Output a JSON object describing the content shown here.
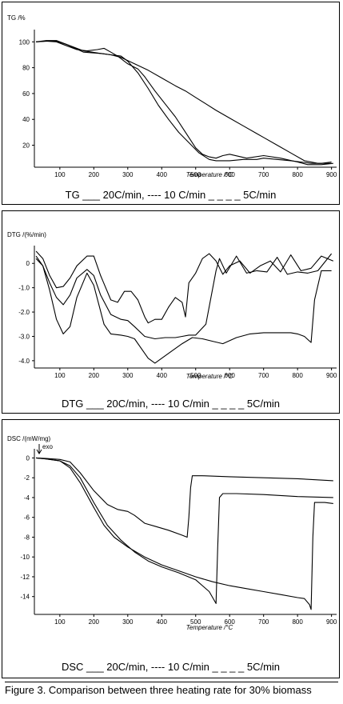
{
  "colors": {
    "line": "#000000",
    "background": "#ffffff"
  },
  "caption": "Figure 3.  Comparison between three heating rate for 30% biomass",
  "chart_data": [
    {
      "type": "line",
      "ylabel": "TG /%",
      "xlabel": "Temperature /°C",
      "legend_text": "TG  ___ 20C/min, ----  10 C/min  _ _ _ _ 5C/min",
      "xlim": [
        25,
        915
      ],
      "ylim": [
        3,
        107
      ],
      "x_ticks": [
        100,
        200,
        300,
        400,
        500,
        600,
        700,
        800,
        900
      ],
      "y_ticks": [
        20,
        40,
        60,
        80,
        100
      ],
      "grid": false,
      "series": [
        {
          "name": "20C/min",
          "x": [
            30,
            60,
            90,
            120,
            170,
            220,
            250,
            280,
            320,
            360,
            400,
            440,
            470,
            500,
            530,
            560,
            600,
            640,
            680,
            700,
            740,
            780,
            820,
            860,
            900
          ],
          "y": [
            100,
            100.5,
            100.5,
            98,
            93,
            91,
            90,
            88,
            83,
            78,
            72,
            66,
            62,
            57,
            52,
            47,
            41,
            35,
            29,
            26,
            20,
            14,
            8,
            6,
            6
          ]
        },
        {
          "name": "10C/min",
          "x": [
            30,
            60,
            90,
            120,
            170,
            220,
            250,
            280,
            300,
            330,
            360,
            390,
            420,
            450,
            480,
            510,
            540,
            560,
            600,
            640,
            680,
            700,
            740,
            780,
            810,
            840,
            870,
            900
          ],
          "y": [
            100,
            101,
            101,
            98,
            92,
            91,
            90,
            89,
            85,
            76,
            64,
            51,
            40,
            30,
            22,
            14,
            9,
            8,
            8,
            9,
            9,
            10,
            9,
            8,
            7,
            6,
            6,
            7
          ]
        },
        {
          "name": "5C/min",
          "x": [
            30,
            60,
            90,
            120,
            150,
            180,
            210,
            230,
            250,
            270,
            300,
            330,
            350,
            380,
            410,
            440,
            460,
            480,
            500,
            520,
            540,
            560,
            580,
            600,
            650,
            700,
            750,
            800,
            830,
            870,
            905
          ],
          "y": [
            100,
            100.5,
            100,
            97,
            94,
            93,
            94,
            95,
            92,
            89,
            83,
            79,
            73,
            62,
            52,
            42,
            34,
            26,
            18,
            13,
            11,
            10,
            12,
            13,
            10,
            12,
            10,
            7,
            5,
            5,
            6
          ]
        }
      ]
    },
    {
      "type": "line",
      "ylabel": "DTG /(%/min)",
      "xlabel": "Temperature /°C",
      "legend_text": "DTG  ___ 20C/min, ----  10 C/min  _ _ _ _ 5C/min",
      "xlim": [
        25,
        915
      ],
      "ylim": [
        -4.3,
        0.6
      ],
      "x_ticks": [
        100,
        200,
        300,
        400,
        500,
        600,
        700,
        800,
        900
      ],
      "y_ticks": [
        0,
        -1.0,
        -2.0,
        -3.0,
        -4.0
      ],
      "grid": false,
      "series": [
        {
          "name": "20C/min",
          "x": [
            30,
            50,
            70,
            90,
            110,
            130,
            150,
            180,
            200,
            230,
            250,
            280,
            300,
            320,
            340,
            360,
            380,
            400,
            430,
            460,
            490,
            520,
            550,
            580,
            620,
            660,
            700,
            740,
            780,
            800,
            820,
            840,
            850,
            870,
            900
          ],
          "y": [
            0.3,
            -0.1,
            -1.1,
            -2.3,
            -2.9,
            -2.6,
            -1.4,
            -0.4,
            -0.9,
            -2.5,
            -2.9,
            -2.95,
            -3.0,
            -3.1,
            -3.5,
            -3.9,
            -4.1,
            -3.9,
            -3.6,
            -3.3,
            -3.05,
            -3.1,
            -3.2,
            -3.3,
            -3.05,
            -2.9,
            -2.85,
            -2.85,
            -2.85,
            -2.9,
            -3.0,
            -3.25,
            -1.5,
            -0.3,
            -0.3
          ]
        },
        {
          "name": "10C/min",
          "x": [
            30,
            50,
            70,
            90,
            110,
            130,
            150,
            180,
            200,
            220,
            250,
            280,
            300,
            320,
            350,
            380,
            410,
            440,
            460,
            480,
            500,
            530,
            560,
            570,
            590,
            620,
            650,
            680,
            710,
            740,
            770,
            800,
            830,
            860,
            900
          ],
          "y": [
            0.2,
            -0.1,
            -0.8,
            -1.4,
            -1.7,
            -1.3,
            -0.6,
            -0.25,
            -0.5,
            -1.3,
            -2.1,
            -2.3,
            -2.35,
            -2.6,
            -3.0,
            -3.1,
            -3.05,
            -3.05,
            -3.0,
            -2.95,
            -2.95,
            -2.5,
            -0.3,
            0.2,
            -0.4,
            0.3,
            -0.4,
            -0.3,
            -0.35,
            0.25,
            -0.45,
            -0.35,
            -0.4,
            -0.3,
            0.4
          ]
        },
        {
          "name": "5C/min",
          "x": [
            30,
            50,
            70,
            90,
            110,
            130,
            150,
            180,
            200,
            220,
            250,
            270,
            290,
            310,
            330,
            350,
            360,
            380,
            400,
            420,
            440,
            460,
            470,
            480,
            500,
            520,
            540,
            560,
            580,
            600,
            630,
            660,
            690,
            720,
            750,
            780,
            810,
            840,
            870,
            905
          ],
          "y": [
            0.5,
            0.2,
            -0.5,
            -1.0,
            -0.95,
            -0.6,
            -0.1,
            0.3,
            0.3,
            -0.5,
            -1.5,
            -1.6,
            -1.15,
            -1.15,
            -1.5,
            -2.2,
            -2.45,
            -2.3,
            -2.3,
            -1.8,
            -1.4,
            -1.6,
            -2.2,
            -0.8,
            -0.4,
            0.2,
            0.4,
            0.1,
            -0.45,
            -0.1,
            0.1,
            -0.4,
            -0.1,
            0.1,
            -0.35,
            0.35,
            -0.3,
            -0.2,
            0.3,
            0.1
          ]
        }
      ]
    },
    {
      "type": "line",
      "ylabel": "DSC /(mW/mg)",
      "annotation": "exo",
      "xlabel": "Temperature /°C",
      "legend_text": "DSC  ___ 20C/min, ----  10 C/min  _ _ _ _ 5C/min",
      "xlim": [
        25,
        915
      ],
      "ylim": [
        -15.8,
        0.6
      ],
      "x_ticks": [
        100,
        200,
        300,
        400,
        500,
        600,
        700,
        800,
        900
      ],
      "y_ticks": [
        0,
        -2,
        -4,
        -6,
        -8,
        -10,
        -12,
        -14
      ],
      "grid": false,
      "series": [
        {
          "name": "20C/min",
          "x": [
            30,
            60,
            100,
            130,
            160,
            200,
            230,
            260,
            300,
            350,
            400,
            450,
            500,
            550,
            600,
            650,
            700,
            750,
            800,
            820,
            835,
            840,
            845,
            850,
            880,
            905
          ],
          "y": [
            0,
            -0.1,
            -0.3,
            -1.0,
            -2.5,
            -5.0,
            -6.8,
            -8.0,
            -9.0,
            -10.0,
            -10.8,
            -11.4,
            -12.0,
            -12.5,
            -12.9,
            -13.2,
            -13.5,
            -13.8,
            -14.1,
            -14.2,
            -14.8,
            -15.3,
            -8.0,
            -4.5,
            -4.5,
            -4.6
          ]
        },
        {
          "name": "10C/min",
          "x": [
            30,
            60,
            100,
            130,
            160,
            200,
            240,
            280,
            320,
            360,
            400,
            450,
            500,
            540,
            560,
            565,
            570,
            580,
            620,
            700,
            800,
            905
          ],
          "y": [
            0,
            -0.1,
            -0.3,
            -0.8,
            -2.0,
            -4.5,
            -6.8,
            -8.3,
            -9.5,
            -10.4,
            -11.0,
            -11.6,
            -12.3,
            -13.5,
            -14.7,
            -9.0,
            -4.0,
            -3.6,
            -3.6,
            -3.7,
            -3.9,
            -4.0
          ]
        },
        {
          "name": "5C/min",
          "x": [
            30,
            60,
            100,
            130,
            160,
            200,
            240,
            270,
            300,
            320,
            350,
            380,
            420,
            460,
            475,
            480,
            485,
            490,
            520,
            600,
            700,
            800,
            905
          ],
          "y": [
            0,
            -0.05,
            -0.15,
            -0.4,
            -1.5,
            -3.3,
            -4.7,
            -5.2,
            -5.4,
            -5.8,
            -6.6,
            -6.9,
            -7.3,
            -7.8,
            -8.0,
            -6.0,
            -3.0,
            -1.8,
            -1.8,
            -1.9,
            -2.0,
            -2.1,
            -2.3
          ]
        }
      ]
    }
  ]
}
